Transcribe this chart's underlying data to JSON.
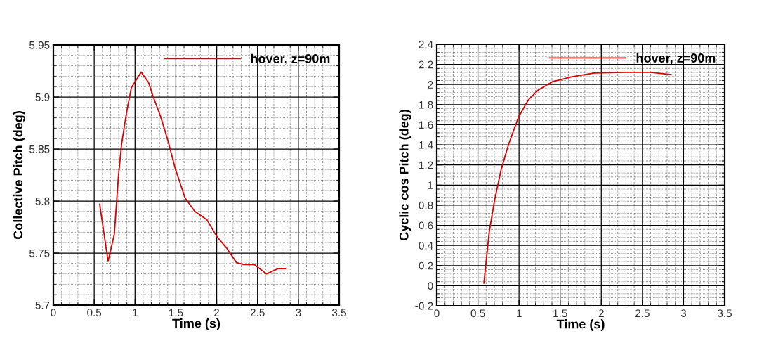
{
  "chart_data": [
    {
      "type": "line",
      "xlabel": "Time (s)",
      "ylabel": "Collective Pitch (deg)",
      "xlim": [
        0,
        3.5
      ],
      "ylim": [
        5.7,
        5.95
      ],
      "xticks": [
        0,
        0.5,
        1,
        1.5,
        2,
        2.5,
        3,
        3.5
      ],
      "yticks": [
        5.7,
        5.75,
        5.8,
        5.85,
        5.9,
        5.95
      ],
      "grid": true,
      "legend": "top right",
      "line_style": "solid",
      "marker": "none",
      "series": [
        {
          "name": "hover, z=90m",
          "color": "#dd0000",
          "x": [
            0.567,
            0.67,
            0.746,
            0.797,
            0.836,
            0.896,
            0.955,
            1.075,
            1.165,
            1.224,
            1.314,
            1.403,
            1.493,
            1.612,
            1.732,
            1.881,
            2.0,
            2.12,
            2.24,
            2.33,
            2.46,
            2.61,
            2.75,
            2.85
          ],
          "values": [
            5.797,
            5.742,
            5.768,
            5.824,
            5.855,
            5.885,
            5.909,
            5.924,
            5.914,
            5.9,
            5.881,
            5.858,
            5.831,
            5.803,
            5.79,
            5.782,
            5.766,
            5.755,
            5.741,
            5.739,
            5.739,
            5.73,
            5.735,
            5.735
          ]
        }
      ]
    },
    {
      "type": "line",
      "xlabel": "Time (s)",
      "ylabel": "Cyclic cos Pitch (deg)",
      "xlim": [
        0,
        3.5
      ],
      "ylim": [
        -0.2,
        2.4
      ],
      "xticks": [
        0,
        0.5,
        1,
        1.5,
        2,
        2.5,
        3,
        3.5
      ],
      "yticks": [
        -0.2,
        0,
        0.2,
        0.4,
        0.6,
        0.8,
        1,
        1.2,
        1.4,
        1.6,
        1.8,
        2,
        2.2,
        2.4
      ],
      "grid": true,
      "legend": "top right",
      "line_style": "solid",
      "marker": "none",
      "series": [
        {
          "name": "hover, z=90m",
          "color": "#dd0000",
          "x": [
            0.573,
            0.638,
            0.703,
            0.786,
            0.875,
            0.994,
            1.112,
            1.231,
            1.409,
            1.646,
            1.913,
            2.299,
            2.596,
            2.848
          ],
          "values": [
            0.026,
            0.536,
            0.851,
            1.167,
            1.409,
            1.677,
            1.846,
            1.944,
            2.029,
            2.077,
            2.114,
            2.121,
            2.121,
            2.099
          ]
        }
      ]
    }
  ]
}
